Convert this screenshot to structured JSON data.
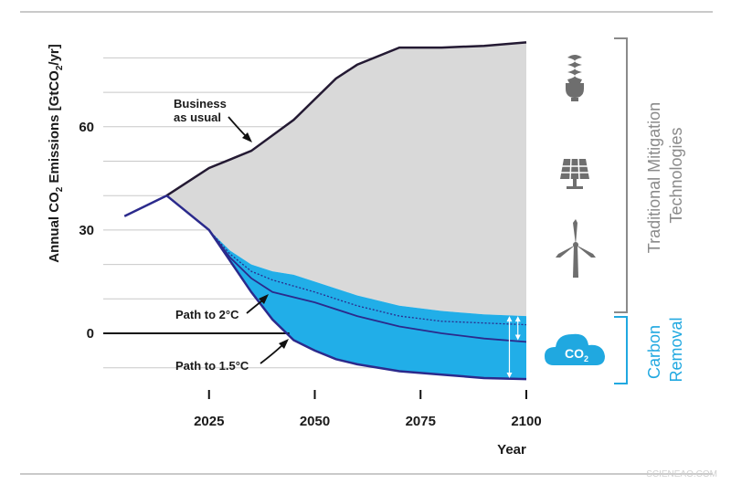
{
  "chart_data": {
    "type": "area",
    "xlabel": "Year",
    "ylabel_parts": [
      "Annual CO",
      "2",
      " Emissions [GtCO",
      "2",
      "/yr]"
    ],
    "xlim": [
      2000,
      2100
    ],
    "ylim": [
      -13,
      70
    ],
    "xticks": [
      2025,
      2050,
      2075,
      2100
    ],
    "yticks": [
      0,
      30,
      60
    ],
    "grid": true,
    "history": {
      "x": [
        2005,
        2015
      ],
      "y": [
        34,
        40
      ]
    },
    "business_as_usual": {
      "x": [
        2015,
        2025,
        2035,
        2045,
        2055,
        2060,
        2070,
        2080,
        2090,
        2100
      ],
      "y": [
        40,
        48,
        53,
        62,
        74,
        78,
        83,
        83,
        83.5,
        84.5
      ]
    },
    "traditional_mitigation_lower": {
      "x": [
        2015,
        2025,
        2030,
        2035,
        2040,
        2045,
        2050,
        2060,
        2070,
        2080,
        2090,
        2100
      ],
      "y": [
        40,
        30,
        24,
        20,
        18,
        17,
        15,
        11,
        8,
        6.5,
        5.5,
        5
      ]
    },
    "path_2c": {
      "x": [
        2015,
        2025,
        2030,
        2035,
        2040,
        2050,
        2060,
        2070,
        2080,
        2090,
        2100
      ],
      "y": [
        40,
        30,
        22,
        16,
        12,
        9,
        5,
        2,
        0,
        -1.5,
        -2.5
      ]
    },
    "path_2c_dashed": {
      "x": [
        2015,
        2025,
        2030,
        2035,
        2040,
        2050,
        2060,
        2070,
        2080,
        2090,
        2100
      ],
      "y": [
        40,
        30,
        23,
        18,
        15.5,
        12,
        8,
        5,
        3.5,
        3,
        2.5
      ]
    },
    "path_15c": {
      "x": [
        2015,
        2025,
        2030,
        2035,
        2040,
        2045,
        2050,
        2055,
        2060,
        2070,
        2080,
        2090,
        2100
      ],
      "y": [
        40,
        30,
        21,
        12,
        4,
        -2,
        -5,
        -7.5,
        -9,
        -11,
        -12,
        -13,
        -13.3
      ]
    },
    "annotations": [
      {
        "id": "bau",
        "lines": [
          "Business",
          "as usual"
        ]
      },
      {
        "id": "p2",
        "lines": [
          "Path to 2°C"
        ]
      },
      {
        "id": "p15",
        "lines": [
          "Path to 1.5°C"
        ]
      }
    ],
    "side_labels": {
      "traditional": [
        "Traditional Mitigation",
        "Technologies"
      ],
      "carbon_removal": [
        "Carbon",
        "Removal"
      ]
    },
    "icons": [
      "light-bulb-icon",
      "solar-panel-icon",
      "wind-turbine-icon",
      "co2-cloud-icon"
    ],
    "co2_icon_text": "CO",
    "co2_icon_sub": "2",
    "colors": {
      "bau_fill": "#d9d9d9",
      "removal_fill": "#21aee8",
      "line": "#241a33",
      "path_line": "#2b2a8c",
      "bracket_gray": "#8a8a8a",
      "bracket_blue": "#20a8e0",
      "grid": "#c8c8c8"
    }
  },
  "watermark": "SCIENEAO.COM"
}
